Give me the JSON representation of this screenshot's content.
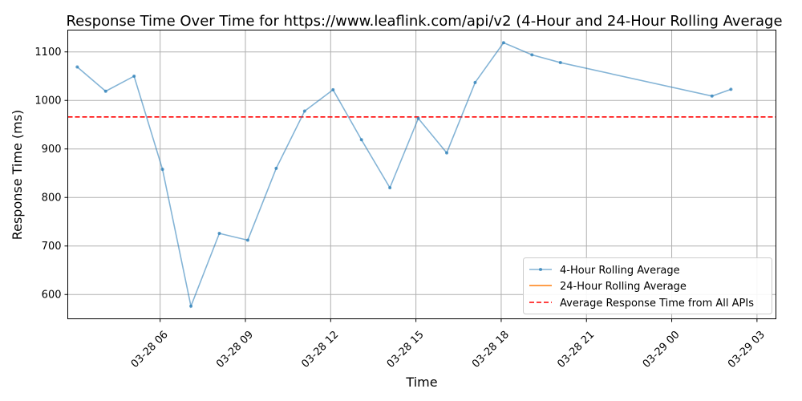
{
  "chart_data": {
    "type": "line",
    "title": "Response Time Over Time for https://www.leaflink.com/api/v2 (4-Hour and 24-Hour Rolling Average",
    "xlabel": "Time",
    "ylabel": "Response Time (ms)",
    "xlim": [
      "2024-03-28T02:45",
      "2024-03-29T03:40"
    ],
    "ylim": [
      550,
      1145
    ],
    "x_ticks": [
      {
        "t": "2024-03-28T06:00",
        "label": "03-28 06"
      },
      {
        "t": "2024-03-28T09:00",
        "label": "03-28 09"
      },
      {
        "t": "2024-03-28T12:00",
        "label": "03-28 12"
      },
      {
        "t": "2024-03-28T15:00",
        "label": "03-28 15"
      },
      {
        "t": "2024-03-28T18:00",
        "label": "03-28 18"
      },
      {
        "t": "2024-03-28T21:00",
        "label": "03-28 21"
      },
      {
        "t": "2024-03-29T00:00",
        "label": "03-29 00"
      },
      {
        "t": "2024-03-29T03:00",
        "label": "03-29 03"
      }
    ],
    "y_ticks": [
      600,
      700,
      800,
      900,
      1000,
      1100
    ],
    "grid": true,
    "legend_position": "lower-right",
    "series": [
      {
        "name": "4-Hour Rolling Average",
        "color": "#1f77b4",
        "marker": "dot",
        "points": [
          {
            "t": "2024-03-28T03:05",
            "y": 1069
          },
          {
            "t": "2024-03-28T04:05",
            "y": 1019
          },
          {
            "t": "2024-03-28T05:05",
            "y": 1050
          },
          {
            "t": "2024-03-28T06:05",
            "y": 858
          },
          {
            "t": "2024-03-28T07:05",
            "y": 576
          },
          {
            "t": "2024-03-28T08:05",
            "y": 726
          },
          {
            "t": "2024-03-28T09:05",
            "y": 712
          },
          {
            "t": "2024-03-28T10:05",
            "y": 860
          },
          {
            "t": "2024-03-28T11:05",
            "y": 978
          },
          {
            "t": "2024-03-28T12:05",
            "y": 1022
          },
          {
            "t": "2024-03-28T13:05",
            "y": 919
          },
          {
            "t": "2024-03-28T14:05",
            "y": 820
          },
          {
            "t": "2024-03-28T15:05",
            "y": 963
          },
          {
            "t": "2024-03-28T16:05",
            "y": 892
          },
          {
            "t": "2024-03-28T17:05",
            "y": 1037
          },
          {
            "t": "2024-03-28T18:05",
            "y": 1119
          },
          {
            "t": "2024-03-28T19:05",
            "y": 1094
          },
          {
            "t": "2024-03-28T20:05",
            "y": 1078
          },
          {
            "t": "2024-03-29T01:25",
            "y": 1009
          },
          {
            "t": "2024-03-29T02:05",
            "y": 1023
          }
        ]
      },
      {
        "name": "24-Hour Rolling Average",
        "color": "#ff7f0e",
        "points": []
      }
    ],
    "reference_line": {
      "name": "Average Response Time from All APIs",
      "y": 966,
      "color": "#ff0000"
    }
  }
}
